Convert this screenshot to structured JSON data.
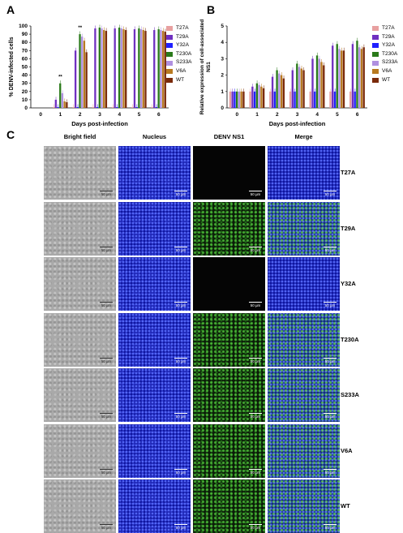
{
  "panel_letters": {
    "a": "A",
    "b": "B",
    "c": "C"
  },
  "colors": {
    "T27A": "#e8a0a0",
    "T29A": "#7030c0",
    "Y32A": "#2020ff",
    "T230A": "#2a7a1a",
    "S233A": "#b090e0",
    "V6A": "#b87a20",
    "WT": "#7a2a0a"
  },
  "legend": [
    "T27A",
    "T29A",
    "Y32A",
    "T230A",
    "S233A",
    "V6A",
    "WT"
  ],
  "chart_data": [
    {
      "type": "bar",
      "ylabel": "% DENV-infected cells",
      "xlabel": "Days post-infection",
      "ylim": [
        0,
        100
      ],
      "yticks": [
        0,
        10,
        20,
        30,
        40,
        50,
        60,
        70,
        80,
        90,
        100
      ],
      "categories": [
        "0",
        "1",
        "2",
        "3",
        "4",
        "5",
        "6"
      ],
      "annotations": [
        {
          "day": "1",
          "text": "**"
        },
        {
          "day": "2",
          "text": "**"
        }
      ],
      "series": [
        {
          "name": "T27A",
          "values": [
            0,
            1,
            1,
            1,
            1,
            1,
            1
          ]
        },
        {
          "name": "T29A",
          "values": [
            0,
            10,
            70,
            97,
            97,
            96,
            95
          ]
        },
        {
          "name": "Y32A",
          "values": [
            0,
            1,
            1,
            1,
            1,
            1,
            1
          ]
        },
        {
          "name": "T230A",
          "values": [
            0,
            30,
            90,
            98,
            98,
            97,
            96
          ]
        },
        {
          "name": "S233A",
          "values": [
            0,
            18,
            87,
            97,
            97,
            96,
            95
          ]
        },
        {
          "name": "V6A",
          "values": [
            0,
            8,
            82,
            95,
            96,
            95,
            94
          ]
        },
        {
          "name": "WT",
          "values": [
            0,
            7,
            68,
            94,
            95,
            94,
            93
          ]
        }
      ]
    },
    {
      "type": "bar",
      "ylabel": "Relative expression of cell-associated NS1",
      "xlabel": "Days post-infection",
      "ylim": [
        0,
        5
      ],
      "yticks": [
        0,
        1,
        2,
        3,
        4,
        5
      ],
      "categories": [
        "0",
        "1",
        "2",
        "3",
        "4",
        "5",
        "6"
      ],
      "series": [
        {
          "name": "T27A",
          "values": [
            1.0,
            1.0,
            1.0,
            1.0,
            1.0,
            1.0,
            1.0
          ]
        },
        {
          "name": "T29A",
          "values": [
            1.0,
            1.3,
            1.9,
            2.3,
            3.0,
            3.8,
            3.9
          ]
        },
        {
          "name": "Y32A",
          "values": [
            1.0,
            1.0,
            1.0,
            1.0,
            1.0,
            1.0,
            1.0
          ]
        },
        {
          "name": "T230A",
          "values": [
            1.0,
            1.5,
            2.3,
            2.7,
            3.2,
            3.9,
            4.1
          ]
        },
        {
          "name": "S233A",
          "values": [
            1.0,
            1.4,
            2.1,
            2.5,
            3.0,
            3.6,
            3.7
          ]
        },
        {
          "name": "V6A",
          "values": [
            1.0,
            1.3,
            2.0,
            2.4,
            2.8,
            3.5,
            3.6
          ]
        },
        {
          "name": "WT",
          "values": [
            1.0,
            1.2,
            1.8,
            2.3,
            2.6,
            3.5,
            3.7
          ]
        }
      ]
    }
  ],
  "images": {
    "columns": [
      "Bright field",
      "Nucleus",
      "DENV NS1",
      "Merge"
    ],
    "scale_bar": "50 μm",
    "rows": [
      {
        "label": "T27A",
        "ns1": false
      },
      {
        "label": "T29A",
        "ns1": true
      },
      {
        "label": "Y32A",
        "ns1": false
      },
      {
        "label": "T230A",
        "ns1": true
      },
      {
        "label": "S233A",
        "ns1": true
      },
      {
        "label": "V6A",
        "ns1": true
      },
      {
        "label": "WT",
        "ns1": true
      }
    ]
  }
}
